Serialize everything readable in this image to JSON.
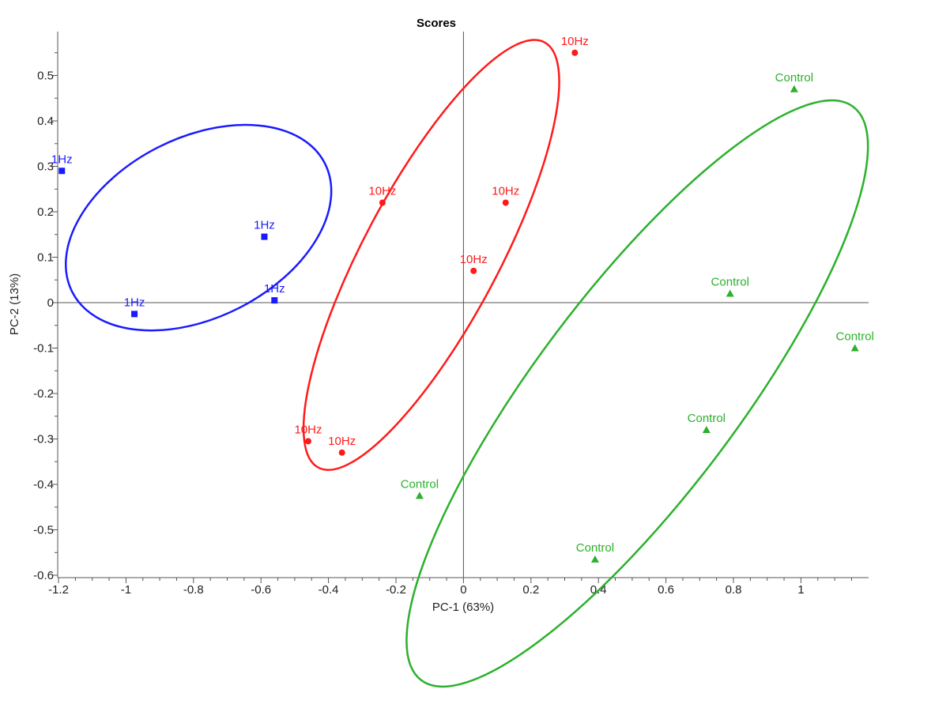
{
  "chart_data": {
    "type": "scatter",
    "title": "Scores",
    "xlabel": "PC-1 (63%)",
    "ylabel": "PC-2 (13%)",
    "xlim": [
      -1.2,
      1.2
    ],
    "ylim": [
      -0.6,
      0.6
    ],
    "x_ticks": [
      -1.2,
      -1,
      -0.8,
      -0.6,
      -0.4,
      -0.2,
      0,
      0.2,
      0.4,
      0.6,
      0.8,
      1
    ],
    "x_tick_labels": [
      "-1.2",
      "-1",
      "-0.8",
      "-0.6",
      "-0.4",
      "-0.2",
      "0",
      "0.2",
      "0.4",
      "0.6",
      "0.8",
      "1"
    ],
    "y_ticks": [
      -0.6,
      -0.5,
      -0.4,
      -0.3,
      -0.2,
      -0.1,
      0,
      0.1,
      0.2,
      0.3,
      0.4,
      0.5
    ],
    "y_tick_labels": [
      "-0.6",
      "-0.5",
      "-0.4",
      "-0.3",
      "-0.2",
      "-0.1",
      "0",
      "0.1",
      "0.2",
      "0.3",
      "0.4",
      "0.5"
    ],
    "grid": false,
    "series": [
      {
        "name": "1Hz",
        "color": "#1a1aff",
        "marker": "square",
        "points": [
          {
            "x": -1.19,
            "y": 0.29,
            "label": "1Hz"
          },
          {
            "x": -0.59,
            "y": 0.145,
            "label": "1Hz"
          },
          {
            "x": -0.56,
            "y": 0.005,
            "label": "1Hz"
          },
          {
            "x": -0.975,
            "y": -0.025,
            "label": "1Hz"
          }
        ],
        "ellipse": {
          "cx": -0.785,
          "cy": 0.165,
          "rx": 0.42,
          "ry": 0.198,
          "angle_deg": -27
        }
      },
      {
        "name": "10Hz",
        "color": "#ff1a1a",
        "marker": "circle",
        "points": [
          {
            "x": 0.33,
            "y": 0.55,
            "label": "10Hz"
          },
          {
            "x": -0.24,
            "y": 0.22,
            "label": "10Hz"
          },
          {
            "x": 0.125,
            "y": 0.22,
            "label": "10Hz"
          },
          {
            "x": 0.03,
            "y": 0.07,
            "label": "10Hz"
          },
          {
            "x": -0.46,
            "y": -0.305,
            "label": "10Hz"
          },
          {
            "x": -0.36,
            "y": -0.33,
            "label": "10Hz"
          }
        ],
        "ellipse": {
          "cx": -0.095,
          "cy": 0.105,
          "rx": 0.2,
          "ry": 0.53,
          "angle_deg": 28
        }
      },
      {
        "name": "Control",
        "color": "#2bb12b",
        "marker": "triangle",
        "points": [
          {
            "x": 0.98,
            "y": 0.47,
            "label": "Control"
          },
          {
            "x": 0.79,
            "y": 0.02,
            "label": "Control"
          },
          {
            "x": 1.16,
            "y": -0.1,
            "label": "Control"
          },
          {
            "x": 0.72,
            "y": -0.28,
            "label": "Control"
          },
          {
            "x": -0.13,
            "y": -0.425,
            "label": "Control"
          },
          {
            "x": 0.39,
            "y": -0.565,
            "label": "Control"
          }
        ],
        "ellipse": {
          "cx": 0.515,
          "cy": -0.2,
          "rx": 0.3,
          "ry": 0.79,
          "angle_deg": 37
        }
      }
    ]
  }
}
